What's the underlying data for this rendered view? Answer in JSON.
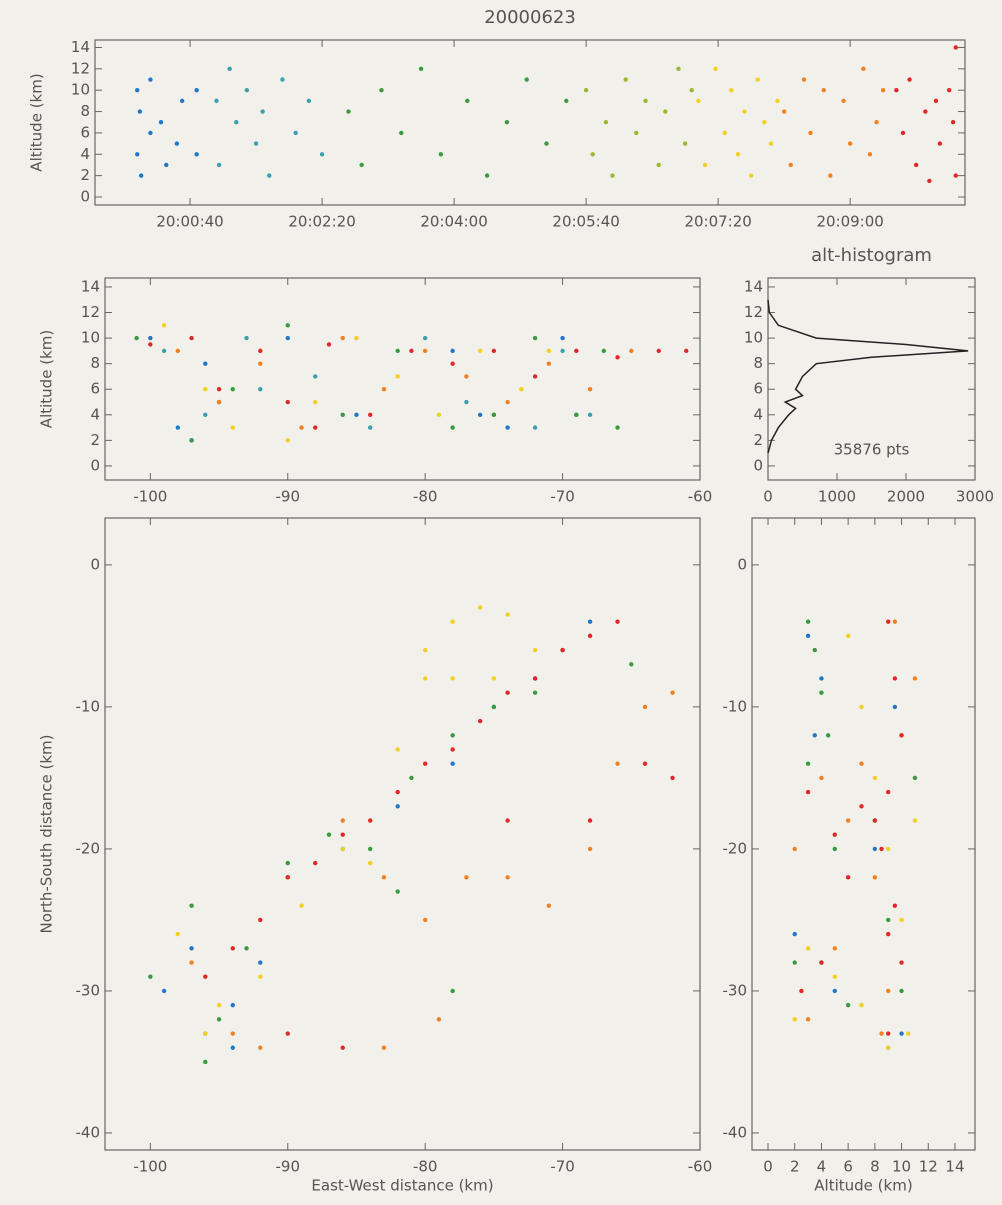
{
  "chart_data": [
    {
      "type": "scatter",
      "title": "20000623",
      "ylabel": "Altitude (km)",
      "xlim": [
        71968,
        72627
      ],
      "ylim": [
        -0.75,
        14.7
      ],
      "xticks": [
        {
          "value": 72040,
          "label": "20:00:40"
        },
        {
          "value": 72140,
          "label": "20:02:20"
        },
        {
          "value": 72240,
          "label": "20:04:00"
        },
        {
          "value": 72340,
          "label": "20:05:40"
        },
        {
          "value": 72440,
          "label": "20:07:20"
        },
        {
          "value": 72540,
          "label": "20:09:00"
        }
      ],
      "yticks": [
        0,
        2,
        4,
        6,
        8,
        10,
        12,
        14
      ],
      "series": [
        {
          "color": "#1f78c8",
          "x": [
            72000,
            72000,
            72002,
            72003,
            72010,
            72010,
            72018,
            72022,
            72030,
            72034,
            72045,
            72045
          ],
          "values": [
            10,
            4,
            8,
            2,
            11,
            6,
            7,
            3,
            5,
            9,
            10,
            4
          ]
        },
        {
          "color": "#3aa0b0",
          "x": [
            72060,
            72062,
            72070,
            72075,
            72083,
            72090,
            72095,
            72100,
            72110,
            72120,
            72130,
            72140
          ],
          "values": [
            9,
            3,
            12,
            7,
            10,
            5,
            8,
            2,
            11,
            6,
            9,
            4
          ]
        },
        {
          "color": "#3a9a40",
          "x": [
            72160,
            72170,
            72185,
            72200,
            72215,
            72230,
            72250,
            72265,
            72280,
            72295,
            72310,
            72325
          ],
          "values": [
            8,
            3,
            10,
            6,
            12,
            4,
            9,
            2,
            7,
            11,
            5,
            9
          ]
        },
        {
          "color": "#9ab830",
          "x": [
            72340,
            72345,
            72355,
            72360,
            72370,
            72378,
            72385,
            72395,
            72400,
            72410,
            72415,
            72420
          ],
          "values": [
            10,
            4,
            7,
            2,
            11,
            6,
            9,
            3,
            8,
            12,
            5,
            10
          ]
        },
        {
          "color": "#f0d020",
          "x": [
            72425,
            72430,
            72438,
            72445,
            72450,
            72455,
            72460,
            72465,
            72470,
            72475,
            72480,
            72485
          ],
          "values": [
            9,
            3,
            12,
            6,
            10,
            4,
            8,
            2,
            11,
            7,
            5,
            9
          ]
        },
        {
          "color": "#f08020",
          "x": [
            72490,
            72495,
            72505,
            72510,
            72520,
            72525,
            72535,
            72540,
            72550,
            72555,
            72560,
            72565
          ],
          "values": [
            8,
            3,
            11,
            6,
            10,
            2,
            9,
            5,
            12,
            4,
            7,
            10
          ]
        },
        {
          "color": "#e02828",
          "x": [
            72575,
            72580,
            72585,
            72590,
            72597,
            72600,
            72605,
            72608,
            72615,
            72618,
            72620,
            72620
          ],
          "values": [
            10,
            6,
            11,
            3,
            8,
            1.5,
            9,
            5,
            10,
            7,
            14,
            2
          ]
        }
      ]
    },
    {
      "type": "scatter",
      "ylabel": "Altitude (km)",
      "xlim": [
        -103.3,
        -60
      ],
      "ylim": [
        -1.1,
        14.7
      ],
      "xticks": [
        -100,
        -90,
        -80,
        -70,
        -60
      ],
      "yticks": [
        0,
        2,
        4,
        6,
        8,
        10,
        12,
        14
      ],
      "series": [
        {
          "color": "#1f78c8",
          "x": [
            -100,
            -98,
            -97,
            -95,
            -90,
            -85,
            -78,
            -76,
            -74,
            -70,
            -69,
            -96
          ],
          "values": [
            10,
            3,
            2,
            5,
            10,
            4,
            9,
            4,
            3,
            10,
            4,
            8
          ]
        },
        {
          "color": "#3aa0b0",
          "x": [
            -99,
            -96,
            -93,
            -88,
            -84,
            -80,
            -77,
            -75,
            -72,
            -70,
            -68,
            -92
          ],
          "values": [
            9,
            4,
            10,
            7,
            3,
            10,
            5,
            4,
            3,
            9,
            4,
            6
          ]
        },
        {
          "color": "#3a9a40",
          "x": [
            -101,
            -97,
            -94,
            -90,
            -86,
            -82,
            -78,
            -75,
            -72,
            -69,
            -66,
            -67
          ],
          "values": [
            10,
            2,
            6,
            11,
            4,
            9,
            3,
            4,
            10,
            4,
            3,
            9
          ]
        },
        {
          "color": "#f0d020",
          "x": [
            -99,
            -96,
            -94,
            -92,
            -88,
            -85,
            -82,
            -79,
            -76,
            -73,
            -71,
            -90
          ],
          "values": [
            11,
            6,
            3,
            9,
            5,
            10,
            7,
            4,
            9,
            6,
            9,
            2
          ]
        },
        {
          "color": "#f08020",
          "x": [
            -98,
            -95,
            -92,
            -89,
            -86,
            -83,
            -80,
            -77,
            -74,
            -71,
            -68,
            -65
          ],
          "values": [
            9,
            5,
            8,
            3,
            10,
            6,
            9,
            7,
            5,
            8,
            6,
            9
          ]
        },
        {
          "color": "#e02828",
          "x": [
            -100,
            -97,
            -95,
            -92,
            -90,
            -87,
            -84,
            -81,
            -78,
            -75,
            -72,
            -69,
            -66,
            -63,
            -61,
            -88
          ],
          "values": [
            9.5,
            10,
            6,
            9,
            5,
            9.5,
            4,
            9,
            8,
            9,
            7,
            9,
            8.5,
            9,
            9,
            3
          ]
        }
      ]
    },
    {
      "type": "line",
      "orientation": "horizontal",
      "title": "alt-histogram",
      "annotation": "35876 pts",
      "color": "#222222",
      "xlim": [
        0,
        3000
      ],
      "ylim": [
        -1.1,
        14.7
      ],
      "xticks": [
        0,
        1000,
        2000,
        3000
      ],
      "yticks": [
        0,
        2,
        4,
        6,
        8,
        10,
        12,
        14
      ],
      "y": [
        1,
        2,
        3,
        4,
        4.5,
        5,
        5.5,
        6,
        7,
        8,
        8.5,
        9,
        9.5,
        10,
        11,
        12,
        13
      ],
      "values": [
        0,
        50,
        150,
        300,
        400,
        250,
        500,
        400,
        500,
        700,
        1500,
        2900,
        2000,
        700,
        150,
        20,
        0
      ]
    },
    {
      "type": "scatter",
      "xlabel": "East-West distance (km)",
      "ylabel": "North-South distance (km)",
      "xlim": [
        -103.3,
        -60
      ],
      "ylim": [
        -41.2,
        3.3
      ],
      "xticks": [
        -100,
        -90,
        -80,
        -70,
        -60
      ],
      "yticks": [
        0,
        -10,
        -20,
        -30,
        -40
      ],
      "series": [
        {
          "color": "#1f78c8",
          "x": [
            -99,
            -96,
            -94,
            -92,
            -90,
            -86,
            -82,
            -78,
            -75,
            -72,
            -70,
            -68,
            -94,
            -97
          ],
          "values": [
            -30,
            -33,
            -34,
            -28,
            -22,
            -20,
            -17,
            -14,
            -10,
            -8,
            -6,
            -4,
            -31,
            -27
          ]
        },
        {
          "color": "#3a9a40",
          "x": [
            -100,
            -97,
            -95,
            -93,
            -90,
            -87,
            -84,
            -81,
            -78,
            -75,
            -72,
            -68,
            -65,
            -78,
            -82,
            -96
          ],
          "values": [
            -29,
            -24,
            -32,
            -27,
            -21,
            -19,
            -20,
            -15,
            -12,
            -10,
            -9,
            -5,
            -7,
            -30,
            -23,
            -35
          ]
        },
        {
          "color": "#f0d020",
          "x": [
            -98,
            -95,
            -92,
            -89,
            -86,
            -82,
            -80,
            -78,
            -76,
            -74,
            -72,
            -75,
            -78,
            -80,
            -84,
            -96
          ],
          "values": [
            -26,
            -31,
            -29,
            -24,
            -20,
            -13,
            -8,
            -4,
            -3,
            -3.5,
            -6,
            -8,
            -8,
            -6,
            -21,
            -33
          ]
        },
        {
          "color": "#f08020",
          "x": [
            -97,
            -94,
            -90,
            -86,
            -83,
            -80,
            -77,
            -74,
            -71,
            -68,
            -66,
            -64,
            -62,
            -79,
            -83,
            -92
          ],
          "values": [
            -28,
            -33,
            -22,
            -18,
            -22,
            -25,
            -22,
            -22,
            -24,
            -20,
            -14,
            -10,
            -9,
            -32,
            -34,
            -34
          ]
        },
        {
          "color": "#e02828",
          "x": [
            -96,
            -94,
            -92,
            -90,
            -88,
            -86,
            -84,
            -82,
            -80,
            -78,
            -76,
            -74,
            -72,
            -70,
            -68,
            -66,
            -64,
            -62,
            -74,
            -68,
            -90,
            -86
          ],
          "values": [
            -29,
            -27,
            -25,
            -22,
            -21,
            -19,
            -18,
            -16,
            -14,
            -13,
            -11,
            -9,
            -8,
            -6,
            -5,
            -4,
            -14,
            -15,
            -18,
            -18,
            -33,
            -34
          ]
        }
      ]
    },
    {
      "type": "scatter",
      "xlabel": "Altitude (km)",
      "xlim": [
        -1.2,
        15.5
      ],
      "ylim": [
        -41.2,
        3.3
      ],
      "xticks": [
        0,
        2,
        4,
        6,
        8,
        10,
        12,
        14
      ],
      "yticks": [
        0,
        -10,
        -20,
        -30,
        -40
      ],
      "series": [
        {
          "color": "#1f78c8",
          "x": [
            3,
            4,
            3.5,
            9,
            10,
            2,
            5,
            8,
            9.5,
            4
          ],
          "values": [
            -5,
            -8,
            -12,
            -34,
            -33,
            -26,
            -30,
            -20,
            -10,
            -28
          ]
        },
        {
          "color": "#3a9a40",
          "x": [
            3,
            3.5,
            4,
            4.5,
            3,
            5,
            9,
            10,
            8,
            2,
            6,
            11
          ],
          "values": [
            -4,
            -6,
            -9,
            -12,
            -14,
            -20,
            -25,
            -30,
            -18,
            -28,
            -31,
            -15
          ]
        },
        {
          "color": "#f0d020",
          "x": [
            6,
            7,
            8,
            9,
            10,
            10.5,
            3,
            5,
            7,
            9,
            2,
            11
          ],
          "values": [
            -5,
            -10,
            -15,
            -20,
            -25,
            -33,
            -27,
            -29,
            -31,
            -34,
            -32,
            -18
          ]
        },
        {
          "color": "#f08020",
          "x": [
            2,
            4,
            6,
            8,
            9,
            10,
            11,
            3,
            5,
            7,
            9.5,
            8.5
          ],
          "values": [
            -20,
            -15,
            -18,
            -22,
            -30,
            -12,
            -8,
            -32,
            -27,
            -14,
            -4,
            -33
          ]
        },
        {
          "color": "#e02828",
          "x": [
            9,
            9.5,
            10,
            9,
            8.5,
            9.5,
            10,
            9,
            3,
            5,
            6,
            7,
            4,
            2.5,
            8,
            9
          ],
          "values": [
            -4,
            -8,
            -12,
            -16,
            -20,
            -24,
            -28,
            -33,
            -16,
            -19,
            -22,
            -17,
            -28,
            -30,
            -18,
            -26
          ]
        }
      ]
    }
  ]
}
